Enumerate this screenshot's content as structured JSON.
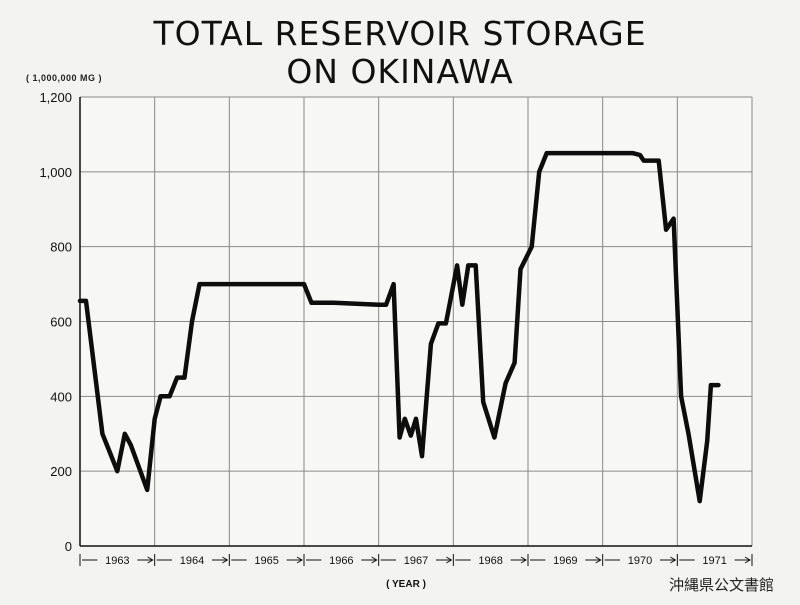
{
  "chart_data": {
    "type": "line",
    "title": "TOTAL RESERVOIR STORAGE",
    "subtitle": "ON OKINAWA",
    "ylabel": "( 1,000,000 MG )",
    "xlabel": "( YEAR )",
    "ylim": [
      0,
      1200
    ],
    "xlim": [
      1963.0,
      1972.0
    ],
    "yticks": [
      "0",
      "200",
      "400",
      "600",
      "800",
      "1,000",
      "1,200"
    ],
    "ytick_values": [
      0,
      200,
      400,
      600,
      800,
      1000,
      1200
    ],
    "year_labels": [
      "1963",
      "1964",
      "1965",
      "1966",
      "1967",
      "1968",
      "1969",
      "1970",
      "1971"
    ],
    "grid": true,
    "series": [
      {
        "x": [
          1963.0,
          1963.08,
          1963.3,
          1963.4,
          1963.5,
          1963.6,
          1963.68,
          1963.9,
          1964.0,
          1964.08,
          1964.2,
          1964.3,
          1964.4,
          1964.5,
          1964.6,
          1964.7,
          1965.4,
          1966.0,
          1966.1,
          1966.4,
          1967.0,
          1967.1,
          1967.2,
          1967.28,
          1967.35,
          1967.43,
          1967.5,
          1967.58,
          1967.7,
          1967.8,
          1967.9,
          1968.05,
          1968.12,
          1968.2,
          1968.3,
          1968.4,
          1968.55,
          1968.7,
          1968.82,
          1968.9,
          1969.05,
          1969.15,
          1969.25,
          1969.35,
          1969.42,
          1969.5,
          1970.0,
          1970.4,
          1970.5,
          1970.55,
          1970.65,
          1970.75,
          1970.85,
          1970.95,
          1971.05,
          1971.15,
          1971.3,
          1971.4,
          1971.45,
          1971.55
        ],
        "y": [
          655,
          655,
          300,
          250,
          200,
          300,
          270,
          150,
          340,
          400,
          400,
          450,
          450,
          600,
          700,
          700,
          700,
          700,
          650,
          650,
          645,
          645,
          700,
          290,
          340,
          295,
          340,
          240,
          540,
          595,
          595,
          750,
          645,
          750,
          750,
          385,
          290,
          435,
          490,
          740,
          800,
          1000,
          1050,
          1050,
          1050,
          1050,
          1050,
          1050,
          1045,
          1030,
          1030,
          1030,
          845,
          875,
          400,
          300,
          120,
          280,
          430,
          430
        ]
      }
    ],
    "footer_text": "沖縄県公文書館"
  }
}
